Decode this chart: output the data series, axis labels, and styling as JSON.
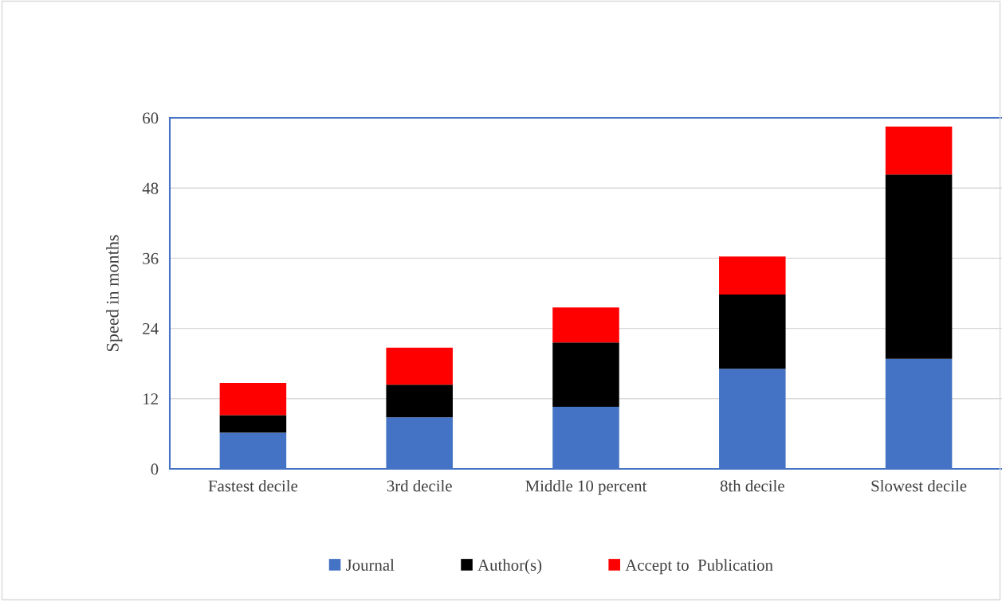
{
  "chart_data": {
    "type": "bar",
    "stacked": true,
    "ylabel": "Speed in months",
    "categories": [
      "Fastest decile",
      "3rd decile",
      "Middle 10 percent",
      "8th decile",
      "Slowest decile"
    ],
    "series": [
      {
        "name": "Journal",
        "color": "#4472c4",
        "values": [
          6.2,
          8.8,
          10.6,
          17.1,
          18.8
        ]
      },
      {
        "name": "Author(s)",
        "color": "#000000",
        "values": [
          3.0,
          5.6,
          11.0,
          12.7,
          31.5
        ]
      },
      {
        "name": "Accept to  Publication",
        "color": "#ff0000",
        "values": [
          5.5,
          6.3,
          6.0,
          6.5,
          8.2
        ]
      }
    ],
    "ylim": [
      0,
      60
    ],
    "yticks": [
      0,
      12,
      24,
      36,
      48,
      60
    ],
    "grid": "y",
    "legend": "bottom"
  }
}
